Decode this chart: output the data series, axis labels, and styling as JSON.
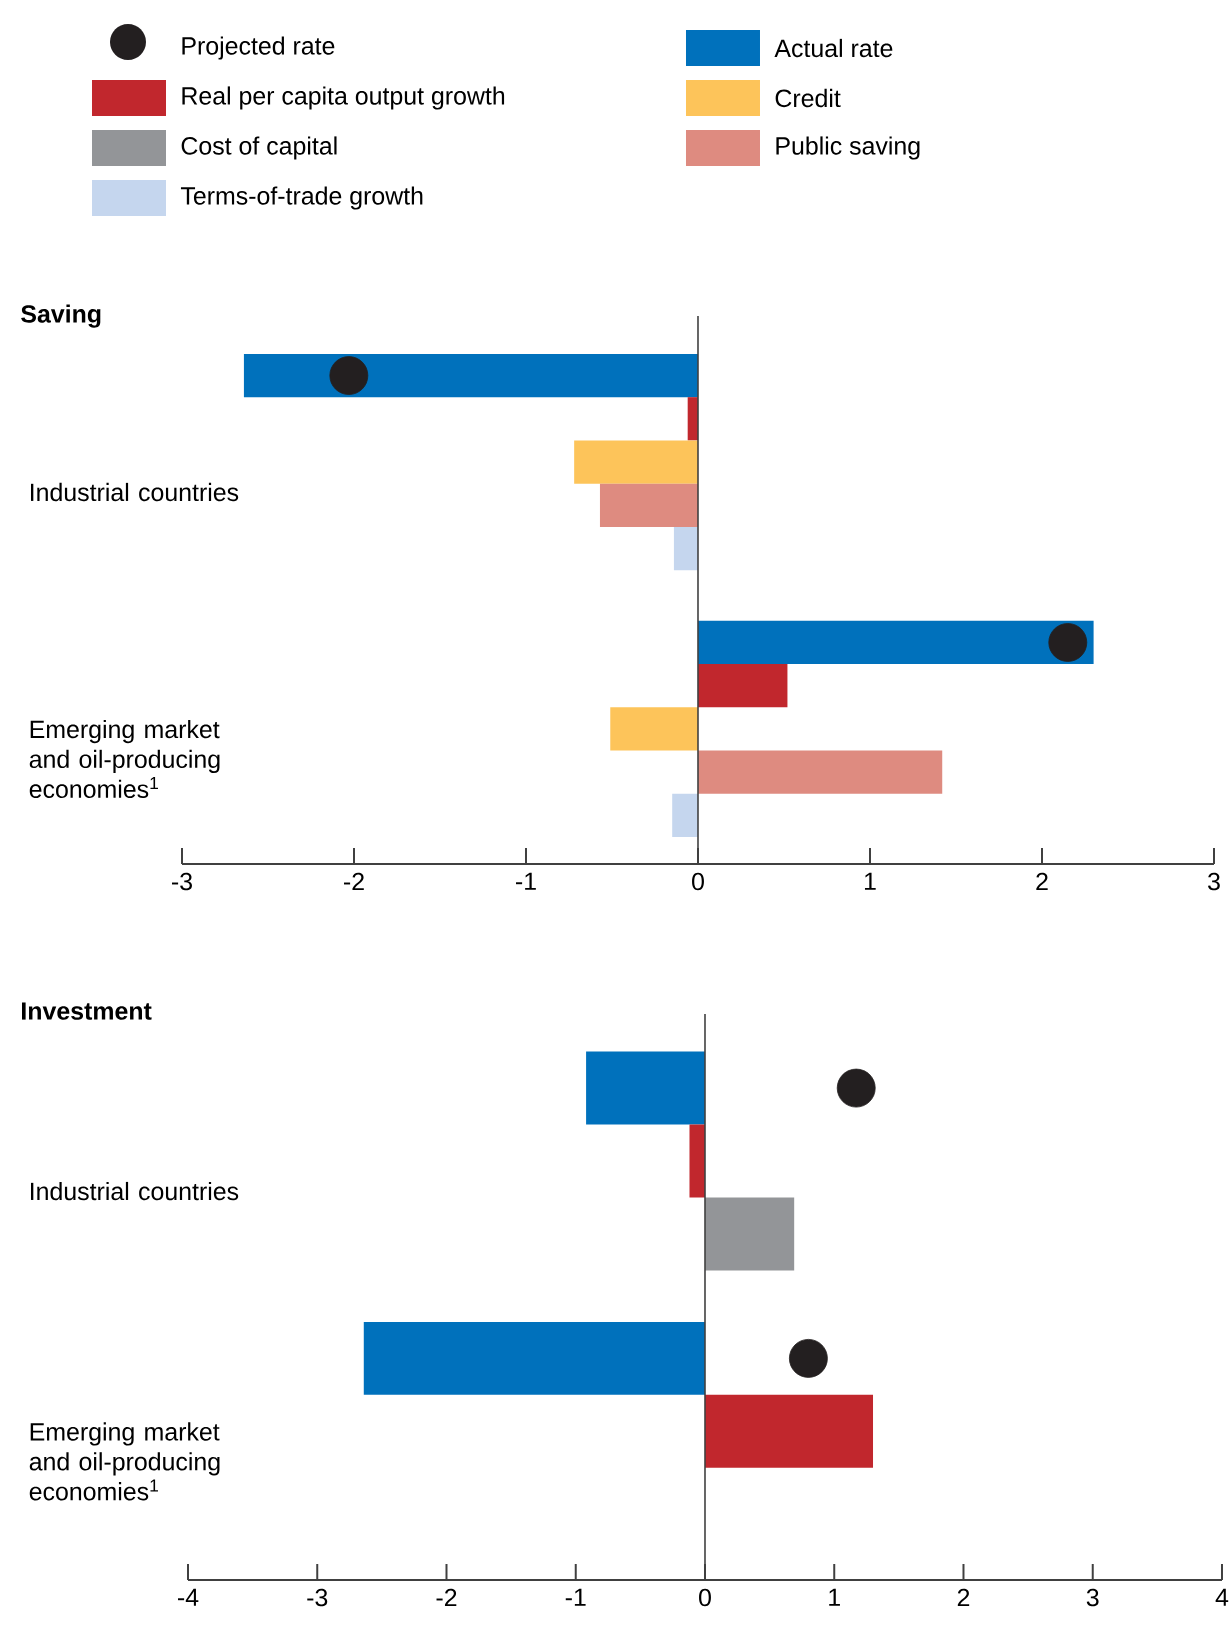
{
  "chart_data": [
    {
      "type": "bar",
      "orientation": "horizontal",
      "title": "Saving",
      "legend": "top",
      "categories": [
        "Industrial countries",
        "Emerging market and oil-producing economies$^{1}$"
      ],
      "xlim": [
        -3,
        3
      ],
      "xticks": [
        -3,
        -2,
        -1,
        0,
        1,
        2,
        3
      ],
      "series": [
        {
          "name": "Projected rate",
          "type": "scatter",
          "marker": "circle",
          "color": "#231f20",
          "values": [
            -2.03,
            2.15
          ]
        },
        {
          "name": "Actual rate",
          "color": "#0071bc",
          "values": [
            -2.64,
            2.3
          ]
        },
        {
          "name": "Real per capita output growth",
          "color": "#c1272d",
          "values": [
            -0.06,
            0.52
          ]
        },
        {
          "name": "Credit",
          "color": "#fdc45a",
          "values": [
            -0.72,
            -0.51
          ]
        },
        {
          "name": "Cost of capital",
          "color": "#939598",
          "values": [
            null,
            null
          ]
        },
        {
          "name": "Public saving",
          "color": "#de8b80",
          "values": [
            -0.57,
            1.42
          ]
        },
        {
          "name": "Terms-of-trade growth",
          "color": "#c5d6ee",
          "values": [
            -0.14,
            -0.15
          ]
        }
      ]
    },
    {
      "type": "bar",
      "orientation": "horizontal",
      "title": "Investment",
      "categories": [
        "Industrial countries",
        "Emerging market and oil-producing economies$^{1}$"
      ],
      "xlim": [
        -4,
        4
      ],
      "xticks": [
        -4,
        -3,
        -2,
        -1,
        0,
        1,
        2,
        3,
        4
      ],
      "series": [
        {
          "type": "scatter",
          "marker": "circle",
          "color": "#231f20",
          "values": [
            1.17,
            0.8
          ]
        },
        {
          "color": "#0071bc",
          "values": [
            -0.92,
            -2.64
          ]
        },
        {
          "color": "#c1272d",
          "values": [
            -0.12,
            1.3
          ]
        },
        {
          "color": "#939598",
          "values": [
            0.69,
            null
          ]
        }
      ]
    }
  ]
}
